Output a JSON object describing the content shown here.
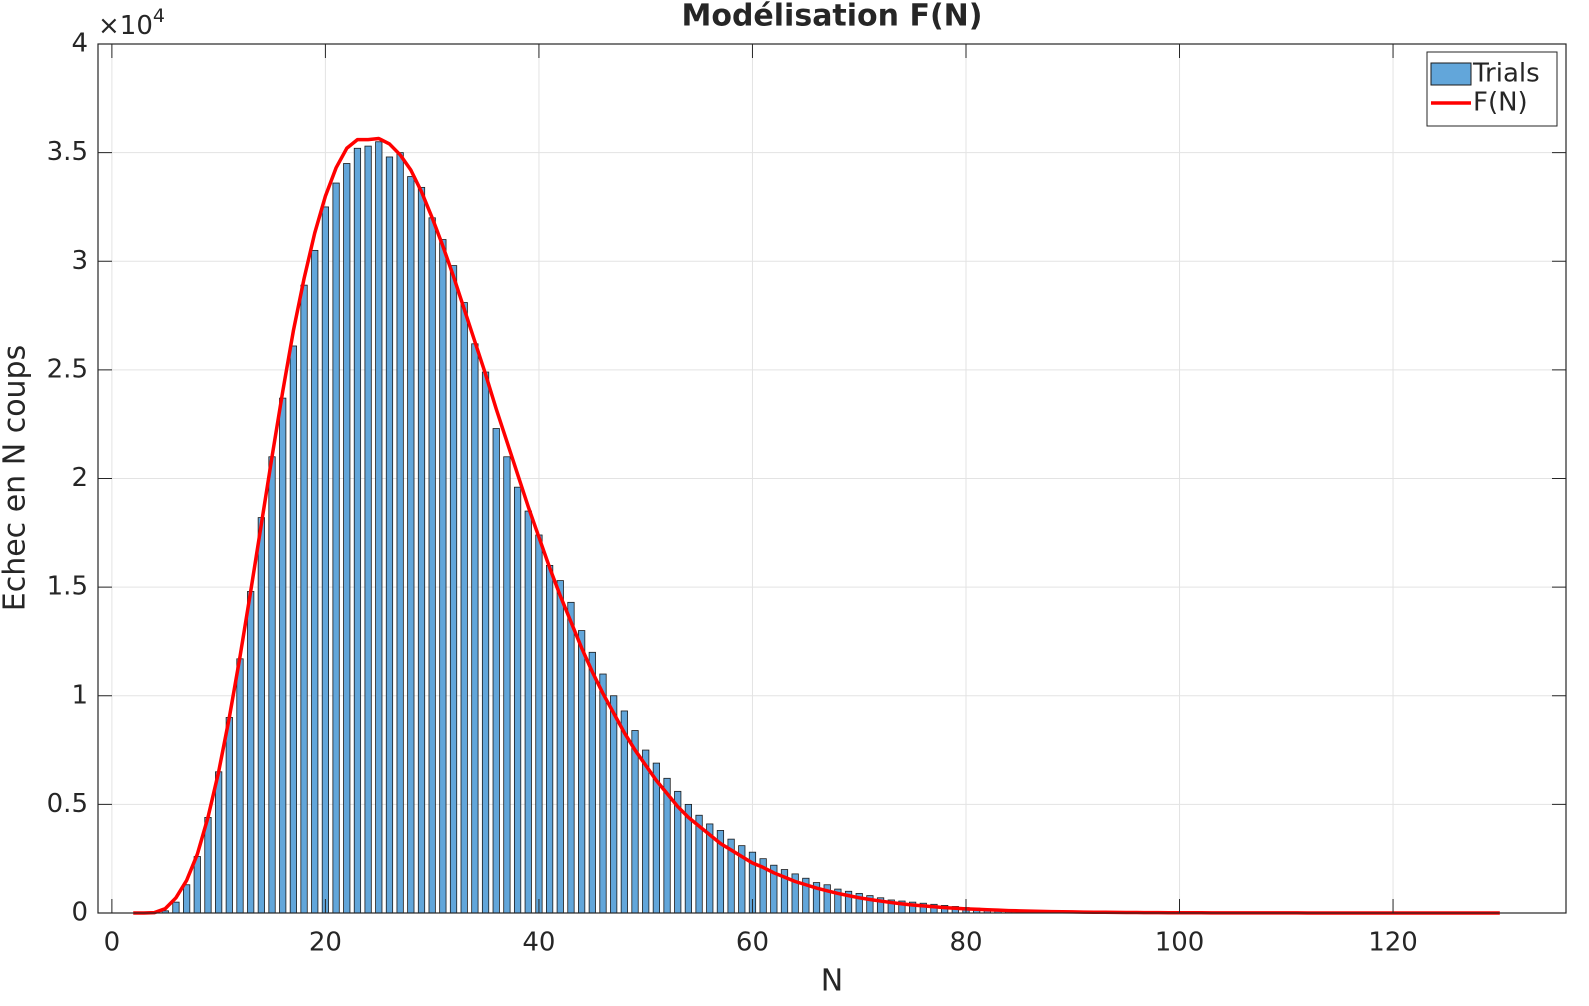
{
  "chart_data": {
    "type": "bar",
    "title": "Modélisation F(N)",
    "x_label": "N",
    "y_label": "Echec en N coups",
    "y_multiplier": {
      "base": "×10",
      "exponent": "4"
    },
    "xlim": [
      -1.3,
      136.2
    ],
    "ylim": [
      0,
      40000
    ],
    "xticks": [
      0,
      20,
      40,
      60,
      80,
      100,
      120
    ],
    "yticks": [
      0,
      {
        "value": 5000,
        "label": "0.5"
      },
      {
        "value": 10000,
        "label": "1"
      },
      {
        "value": 15000,
        "label": "1.5"
      },
      {
        "value": 20000,
        "label": "2"
      },
      {
        "value": 25000,
        "label": "2.5"
      },
      {
        "value": 30000,
        "label": "3"
      },
      {
        "value": 35000,
        "label": "3.5"
      },
      {
        "value": 40000,
        "label": "4"
      }
    ],
    "grid": true,
    "legend": "top-right",
    "x": [
      2,
      3,
      4,
      5,
      6,
      7,
      8,
      9,
      10,
      11,
      12,
      13,
      14,
      15,
      16,
      17,
      18,
      19,
      20,
      21,
      22,
      23,
      24,
      25,
      26,
      27,
      28,
      29,
      30,
      31,
      32,
      33,
      34,
      35,
      36,
      37,
      38,
      39,
      40,
      41,
      42,
      43,
      44,
      45,
      46,
      47,
      48,
      49,
      50,
      51,
      52,
      53,
      54,
      55,
      56,
      57,
      58,
      59,
      60,
      61,
      62,
      63,
      64,
      65,
      66,
      67,
      68,
      69,
      70,
      71,
      72,
      73,
      74,
      75,
      76,
      77,
      78,
      79,
      80,
      81,
      82,
      83,
      84,
      85,
      86,
      87,
      88,
      89,
      90,
      91,
      92,
      93,
      94,
      95,
      96,
      97,
      98,
      99,
      100,
      101,
      102,
      103,
      104,
      105,
      106,
      107,
      108,
      109,
      110,
      111,
      112,
      113,
      114,
      115,
      116,
      117,
      118,
      119,
      120,
      121,
      122,
      123,
      124,
      125,
      126,
      127,
      128,
      129,
      130
    ],
    "series": [
      {
        "name": "Trials",
        "type": "bar",
        "color": "#62a6da",
        "values": [
          0,
          0,
          0,
          100,
          500,
          1300,
          2600,
          4400,
          6500,
          9000,
          11700,
          14800,
          18200,
          21000,
          23700,
          26100,
          28900,
          30500,
          32500,
          33600,
          34500,
          35200,
          35300,
          35500,
          34800,
          35000,
          33900,
          33400,
          32000,
          31000,
          29800,
          28100,
          26200,
          24900,
          22300,
          21000,
          19600,
          18500,
          17400,
          16000,
          15300,
          14300,
          13000,
          12000,
          11000,
          10000,
          9300,
          8400,
          7500,
          6900,
          6200,
          5600,
          5000,
          4500,
          4100,
          3800,
          3400,
          3100,
          2800,
          2500,
          2200,
          2000,
          1800,
          1600,
          1400,
          1300,
          1100,
          1000,
          900,
          800,
          700,
          600,
          550,
          500,
          450,
          400,
          350,
          300,
          250,
          220,
          190,
          160,
          140,
          120,
          100,
          90,
          80,
          70,
          60,
          50,
          45,
          40,
          35,
          30,
          25,
          20,
          18,
          15,
          12,
          10,
          9,
          8,
          7,
          6,
          5,
          5,
          4,
          4,
          3,
          3,
          2,
          2,
          2,
          1,
          1,
          1,
          1,
          1,
          1,
          0,
          0,
          0,
          0,
          0,
          0,
          0,
          0,
          0,
          0
        ]
      },
      {
        "name": "F(N)",
        "type": "line",
        "color": "#ff0000",
        "values": [
          0,
          0,
          20,
          200,
          700,
          1500,
          2700,
          4400,
          6500,
          9000,
          11800,
          14800,
          17900,
          21000,
          24000,
          26800,
          29200,
          31300,
          33000,
          34300,
          35200,
          35600,
          35600,
          35650,
          35400,
          34900,
          34200,
          33200,
          32000,
          30700,
          29300,
          27800,
          26300,
          24800,
          23200,
          21700,
          20200,
          18700,
          17300,
          15900,
          14600,
          13400,
          12200,
          11100,
          10100,
          9200,
          8300,
          7500,
          6800,
          6100,
          5500,
          4900,
          4400,
          4000,
          3600,
          3200,
          2900,
          2600,
          2300,
          2100,
          1850,
          1650,
          1450,
          1300,
          1150,
          1020,
          900,
          800,
          700,
          620,
          550,
          480,
          420,
          370,
          330,
          290,
          250,
          220,
          190,
          170,
          150,
          130,
          110,
          100,
          85,
          75,
          65,
          55,
          50,
          42,
          37,
          32,
          28,
          24,
          21,
          18,
          16,
          14,
          12,
          10,
          9,
          8,
          7,
          6,
          5,
          5,
          4,
          4,
          3,
          3,
          2,
          2,
          2,
          1,
          1,
          1,
          1,
          1,
          1,
          0,
          0,
          0,
          0,
          0,
          0,
          0,
          0,
          0,
          0
        ]
      }
    ]
  }
}
